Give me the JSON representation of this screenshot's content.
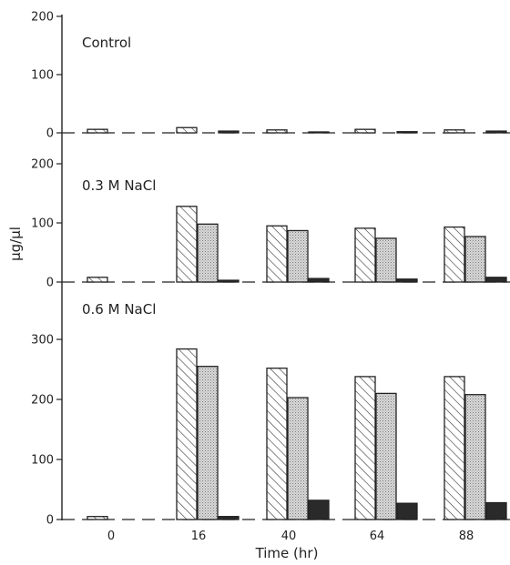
{
  "chart_data": {
    "type": "bar",
    "xlabel": "Time (hr)",
    "ylabel": "μg/μl",
    "categories": [
      "0",
      "16",
      "40",
      "64",
      "88"
    ],
    "panels": [
      {
        "label": "Control",
        "ylim": [
          0,
          200
        ],
        "yticks": [
          "0",
          "100",
          "200"
        ],
        "series": [
          {
            "pattern": "hatched",
            "values": [
              6,
              9,
              5,
              6,
              5
            ]
          },
          {
            "pattern": "stippled",
            "values": [
              0,
              0,
              0,
              0,
              0
            ]
          },
          {
            "pattern": "solid",
            "values": [
              0,
              3,
              1,
              2,
              3
            ]
          }
        ]
      },
      {
        "label": "0.3 M NaCl",
        "ylim": [
          0,
          200
        ],
        "yticks": [
          "0",
          "100",
          "200"
        ],
        "series": [
          {
            "pattern": "hatched",
            "values": [
              8,
              128,
              95,
              91,
              93
            ]
          },
          {
            "pattern": "stippled",
            "values": [
              0,
              98,
              87,
              74,
              77
            ]
          },
          {
            "pattern": "solid",
            "values": [
              0,
              3,
              6,
              5,
              8
            ]
          }
        ]
      },
      {
        "label": "0.6 M NaCl",
        "ylim": [
          0,
          300
        ],
        "yticks": [
          "0",
          "100",
          "200",
          "300"
        ],
        "series": [
          {
            "pattern": "hatched",
            "values": [
              5,
              284,
              252,
              238,
              238
            ]
          },
          {
            "pattern": "stippled",
            "values": [
              0,
              255,
              203,
              210,
              208
            ]
          },
          {
            "pattern": "solid",
            "values": [
              0,
              5,
              32,
              27,
              28
            ]
          }
        ]
      }
    ],
    "grid": false
  }
}
